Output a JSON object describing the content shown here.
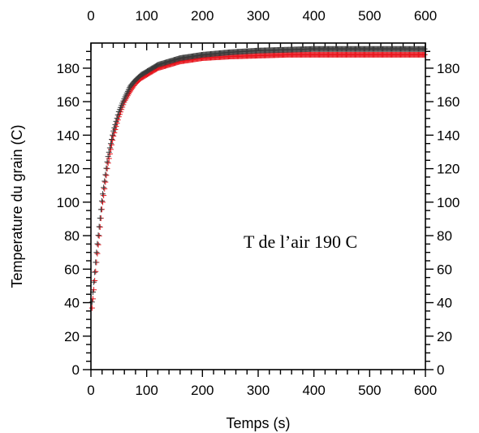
{
  "chart_data": {
    "type": "scatter",
    "xlabel": "Temps (s)",
    "ylabel": "Temperature du grain (C)",
    "annotation": "T de l’air 190 C",
    "xlim": [
      0,
      600
    ],
    "ylim": [
      0,
      195
    ],
    "x_ticks": [
      0,
      100,
      200,
      300,
      400,
      500,
      600
    ],
    "y_ticks": [
      0,
      20,
      40,
      60,
      80,
      100,
      120,
      140,
      160,
      180
    ],
    "x_tick_labels": [
      "0",
      "100",
      "200",
      "300",
      "400",
      "500",
      "600"
    ],
    "y_tick_labels": [
      "0",
      "20",
      "40",
      "60",
      "80",
      "100",
      "120",
      "140",
      "160",
      "180"
    ],
    "marker": "plus",
    "grid": false,
    "mirrored_axes": true,
    "series": [
      {
        "color": "#e8141c",
        "x": [
          0,
          10,
          20,
          30,
          40,
          50,
          60,
          70,
          80,
          90,
          100,
          120,
          140,
          160,
          180,
          200,
          250,
          300,
          350,
          400,
          450,
          500,
          550,
          600
        ],
        "y": [
          30,
          64,
          97,
          122,
          139,
          151,
          160,
          166,
          171,
          174,
          176,
          180,
          182,
          184,
          185,
          186,
          187,
          187.5,
          188,
          188,
          188,
          188,
          188,
          188
        ]
      },
      {
        "color": "#3a3a3a",
        "x": [
          0,
          10,
          20,
          30,
          40,
          50,
          60,
          70,
          80,
          90,
          100,
          120,
          140,
          160,
          180,
          200,
          250,
          300,
          350,
          400,
          450,
          500,
          550,
          600
        ],
        "y": [
          33,
          70,
          102,
          126,
          142,
          154,
          162,
          169,
          173,
          176,
          178,
          182,
          184,
          186,
          187,
          188,
          189.5,
          190.5,
          191,
          191.5,
          191.5,
          191.5,
          191.5,
          191.5
        ]
      }
    ]
  }
}
